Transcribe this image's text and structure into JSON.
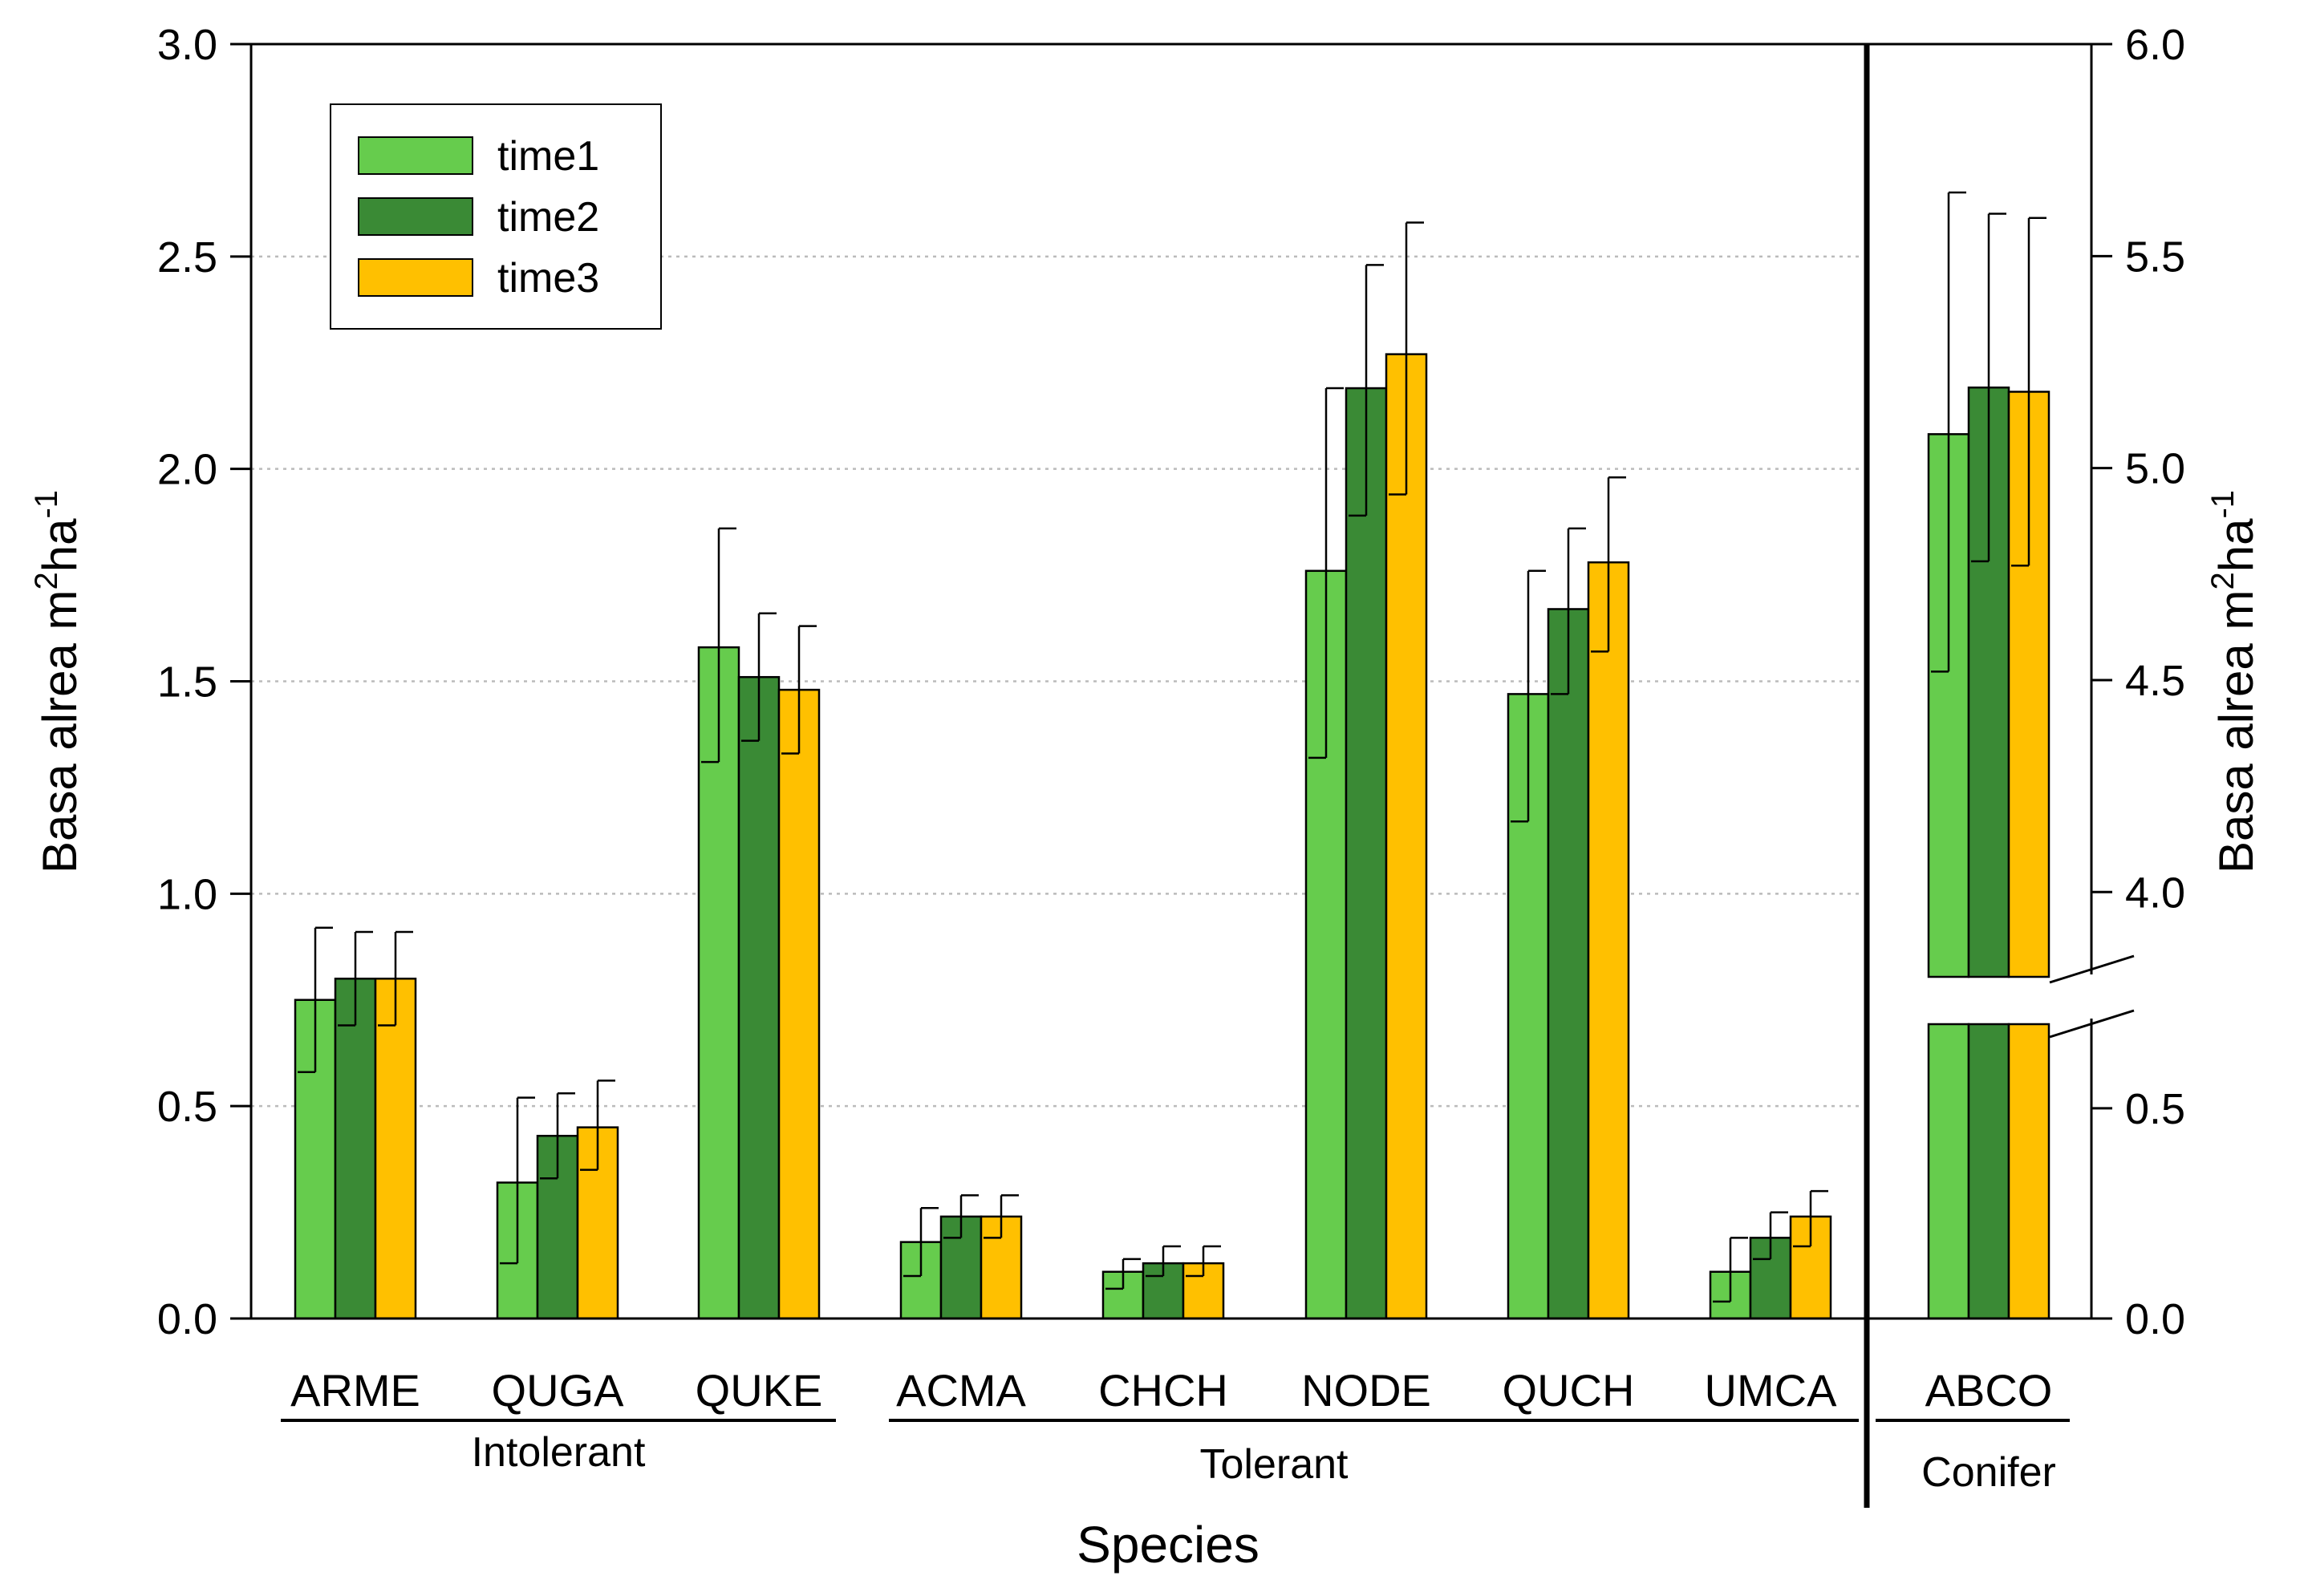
{
  "chart_data": {
    "type": "bar",
    "title": "",
    "xlabel": "Species",
    "ylabel_left": "Basa alrea m",
    "ylabel_right": "Basa alrea m",
    "ylabel_sup1": "2",
    "ylabel_unit2": "ha",
    "ylabel_sup2": "-1",
    "ylim_left": [
      0,
      3.0
    ],
    "yticks_left": [
      "0.0",
      "0.5",
      "1.0",
      "1.5",
      "2.0",
      "2.5",
      "3.0"
    ],
    "ylim_right_lower": [
      0,
      0.7
    ],
    "ylim_right_upper": [
      3.8,
      6.0
    ],
    "yticks_right_lower": [
      "0.0",
      "0.5"
    ],
    "yticks_right_upper": [
      "4.0",
      "4.5",
      "5.0",
      "5.5",
      "6.0"
    ],
    "grid": "horizontal dotted",
    "legend_position": "top-left",
    "categories": [
      "ARME",
      "QUGA",
      "QUKE",
      "ACMA",
      "CHCH",
      "NODE",
      "QUCH",
      "UMCA",
      "ABCO"
    ],
    "groups": [
      {
        "label": "Intolerant",
        "members": [
          "ARME",
          "QUGA",
          "QUKE"
        ]
      },
      {
        "label": "Tolerant",
        "members": [
          "ACMA",
          "CHCH",
          "NODE",
          "QUCH",
          "UMCA"
        ]
      },
      {
        "label": "Conifer",
        "members": [
          "ABCO"
        ]
      }
    ],
    "series": [
      {
        "name": "time1",
        "color": "#66cc4d",
        "values": [
          0.75,
          0.32,
          1.58,
          0.18,
          0.11,
          1.76,
          1.47,
          0.11,
          5.08
        ],
        "err_low": [
          0.58,
          0.13,
          1.31,
          0.1,
          0.07,
          1.32,
          1.17,
          0.04,
          4.52
        ],
        "err_high": [
          0.92,
          0.52,
          1.86,
          0.26,
          0.14,
          2.19,
          1.76,
          0.19,
          5.65
        ]
      },
      {
        "name": "time2",
        "color": "#3a8a35",
        "values": [
          0.8,
          0.43,
          1.51,
          0.24,
          0.13,
          2.19,
          1.67,
          0.19,
          5.19
        ],
        "err_low": [
          0.69,
          0.33,
          1.36,
          0.19,
          0.1,
          1.89,
          1.47,
          0.14,
          4.78
        ],
        "err_high": [
          0.91,
          0.53,
          1.66,
          0.29,
          0.17,
          2.48,
          1.86,
          0.25,
          5.6
        ]
      },
      {
        "name": "time3",
        "color": "#ffc000",
        "values": [
          0.8,
          0.45,
          1.48,
          0.24,
          0.13,
          2.27,
          1.78,
          0.24,
          5.18
        ],
        "err_low": [
          0.69,
          0.35,
          1.33,
          0.19,
          0.1,
          1.94,
          1.57,
          0.17,
          4.77
        ],
        "err_high": [
          0.91,
          0.56,
          1.63,
          0.29,
          0.17,
          2.58,
          1.98,
          0.3,
          5.59
        ]
      }
    ]
  }
}
